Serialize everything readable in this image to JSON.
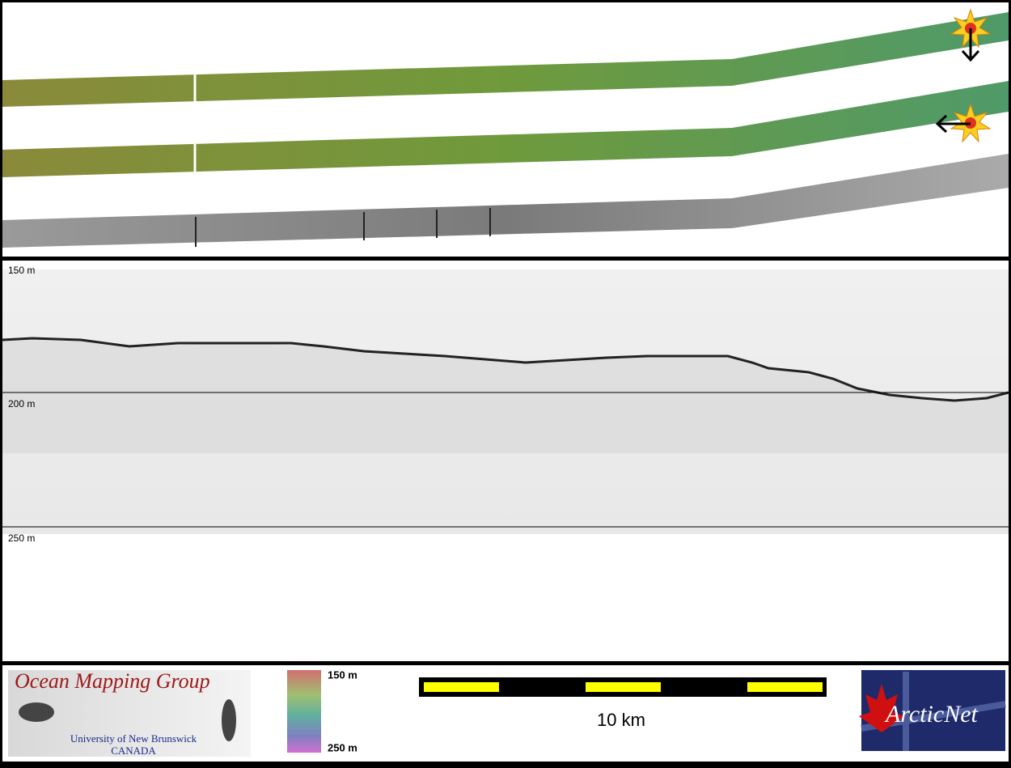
{
  "profile": {
    "depth_labels": [
      "150 m",
      "200 m",
      "250 m"
    ]
  },
  "footer": {
    "logo": {
      "title": "Ocean Mapping Group",
      "university": "University of New Brunswick",
      "country": "CANADA"
    },
    "colorbar": {
      "top_label": "150 m",
      "bottom_label": "250 m"
    },
    "scale_bar": {
      "label": "10 km"
    },
    "partner_logo": {
      "text": "ArcticNet"
    }
  }
}
